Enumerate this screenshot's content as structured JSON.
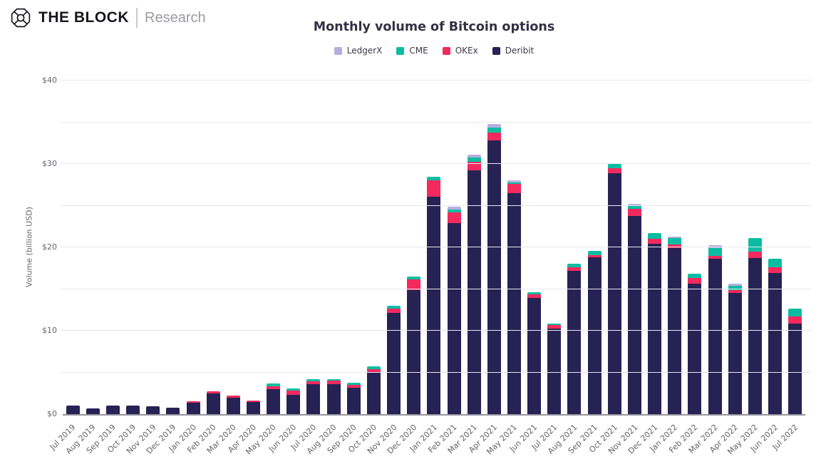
{
  "header": {
    "brand": "THE BLOCK",
    "brand_sub": "Research"
  },
  "chart_data": {
    "type": "bar",
    "stacked": true,
    "title": "Monthly volume of Bitcoin options",
    "xlabel": "",
    "ylabel": "Volume (billion USD)",
    "ylim": [
      0,
      40
    ],
    "ytick_step": 10,
    "ytick_labels": [
      "$0",
      "$10",
      "$20",
      "$30",
      "$40"
    ],
    "grid_step": 5,
    "grid": true,
    "legend_position": "top",
    "background_color": "#ffffff",
    "grid_color": "#e8e8ed",
    "axis_color": "#95949d",
    "categories": [
      "Jul 2019",
      "Aug 2019",
      "Sep 2019",
      "Oct 2019",
      "Nov 2019",
      "Dec 2019",
      "Jan 2020",
      "Feb 2020",
      "Mar 2020",
      "Apr 2020",
      "May 2020",
      "Jun 2020",
      "Jul 2020",
      "Aug 2020",
      "Sep 2020",
      "Oct 2020",
      "Nov 2020",
      "Dec 2020",
      "Jan 2021",
      "Feb 2021",
      "Mar 2021",
      "Apr 2021",
      "May 2021",
      "Jun 2021",
      "Jul 2021",
      "Aug 2021",
      "Sep 2021",
      "Oct 2021",
      "Nov 2021",
      "Dec 2021",
      "Jan 2022",
      "Feb 2022",
      "Mar 2022",
      "Apr 2022",
      "May 2022",
      "Jun 2022",
      "Jul 2022"
    ],
    "series": [
      {
        "name": "LedgerX",
        "color": "#b6aede",
        "values": [
          0,
          0,
          0,
          0,
          0,
          0,
          0,
          0,
          0,
          0,
          0,
          0,
          0,
          0,
          0,
          0,
          0,
          0,
          0,
          0.3,
          0.3,
          0.4,
          0.3,
          0,
          0,
          0,
          0,
          0,
          0.2,
          0,
          0.15,
          0,
          0.35,
          0.25,
          0,
          0,
          0
        ]
      },
      {
        "name": "CME",
        "color": "#0abda2",
        "values": [
          0,
          0,
          0,
          0,
          0,
          0,
          0,
          0,
          0,
          0,
          0.3,
          0.3,
          0.2,
          0.2,
          0.3,
          0.3,
          0.35,
          0.35,
          0.5,
          0.35,
          0.5,
          0.55,
          0.15,
          0.25,
          0.15,
          0.35,
          0.5,
          0.5,
          0.45,
          0.7,
          0.8,
          0.5,
          1.0,
          0.5,
          1.6,
          1.0,
          0.9
        ]
      },
      {
        "name": "OKEx",
        "color": "#f42a5e",
        "values": [
          0,
          0,
          0,
          0,
          0,
          0,
          0.2,
          0.3,
          0.25,
          0.2,
          0.35,
          0.45,
          0.4,
          0.4,
          0.35,
          0.35,
          0.5,
          1.3,
          1.9,
          1.3,
          1.1,
          1.0,
          1.1,
          0.4,
          0.4,
          0.45,
          0.3,
          0.6,
          0.8,
          0.55,
          0.45,
          0.7,
          0.3,
          0.4,
          0.75,
          0.7,
          0.9
        ]
      },
      {
        "name": "Deribit",
        "color": "#262254",
        "values": [
          1.05,
          0.7,
          1.05,
          1.0,
          0.95,
          0.75,
          1.35,
          2.45,
          2.0,
          1.45,
          3.0,
          2.35,
          3.55,
          3.6,
          3.15,
          5.05,
          12.15,
          14.85,
          26.1,
          22.9,
          29.2,
          32.8,
          26.5,
          13.95,
          10.3,
          17.2,
          18.8,
          28.9,
          23.8,
          20.45,
          19.9,
          15.6,
          18.65,
          14.5,
          18.75,
          16.9,
          10.85
        ]
      }
    ],
    "stack_order_bottom_to_top": [
      "Deribit",
      "OKEx",
      "CME",
      "LedgerX"
    ]
  }
}
